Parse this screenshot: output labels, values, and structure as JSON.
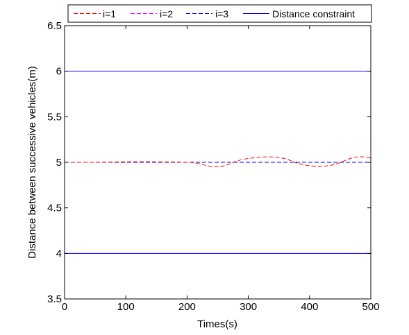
{
  "chart_data": {
    "type": "line",
    "xlabel": "Times(s)",
    "ylabel": "Distance between successive vehicles(m)",
    "xlim": [
      0,
      500
    ],
    "ylim": [
      3.5,
      6.5
    ],
    "xticks": [
      0,
      100,
      200,
      300,
      400,
      500
    ],
    "xtick_labels": [
      "0",
      "100",
      "200",
      "300",
      "400",
      "500"
    ],
    "yticks": [
      3.5,
      4,
      4.5,
      5,
      5.5,
      6,
      6.5
    ],
    "ytick_labels": [
      "3.5",
      "4",
      "4.5",
      "5",
      "5.5",
      "6",
      "6.5"
    ],
    "grid": false,
    "legend_position": "top",
    "series": [
      {
        "name": "i=1",
        "color": "#ff0000",
        "style": "dashed",
        "x": [
          0,
          50,
          100,
          150,
          200,
          215,
          240,
          260,
          290,
          330,
          360,
          380,
          410,
          440,
          470,
          490,
          500
        ],
        "y": [
          5.0,
          5.0,
          5.005,
          5.005,
          5.0,
          4.99,
          4.955,
          4.96,
          5.03,
          5.06,
          5.04,
          4.99,
          4.955,
          4.975,
          5.05,
          5.06,
          5.045
        ]
      },
      {
        "name": "i=2",
        "color": "#ff00ff",
        "style": "dashed",
        "x": [
          0,
          100,
          200,
          300,
          400,
          500
        ],
        "y": [
          5.0,
          5.0,
          5.0,
          5.0,
          5.0,
          5.0
        ]
      },
      {
        "name": "i=3",
        "color": "#0000ff",
        "style": "dashed",
        "x": [
          0,
          100,
          200,
          300,
          400,
          500
        ],
        "y": [
          5.0,
          5.0,
          5.0,
          5.0,
          5.0,
          5.0
        ]
      },
      {
        "name": "Distance constraint",
        "color": "#0000ff",
        "style": "solid",
        "lines": [
          {
            "x": [
              0,
              500
            ],
            "y": [
              6,
              6
            ]
          },
          {
            "x": [
              0,
              500
            ],
            "y": [
              4,
              4
            ]
          }
        ]
      }
    ]
  }
}
